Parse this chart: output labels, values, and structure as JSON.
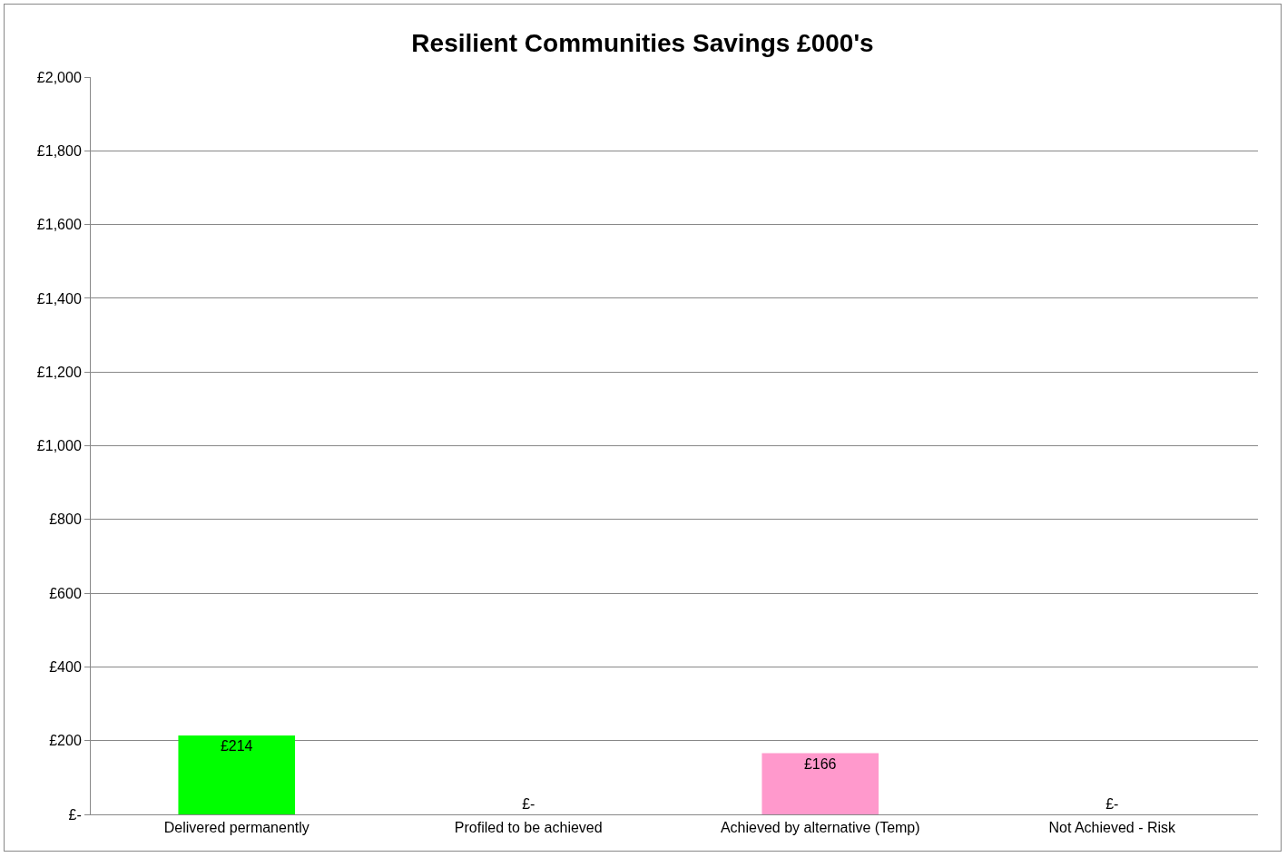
{
  "chart_data": {
    "type": "bar",
    "title": "Resilient Communities Savings £000's",
    "categories": [
      "Delivered permanently",
      "Profiled to be achieved",
      "Achieved by alternative (Temp)",
      "Not Achieved - Risk"
    ],
    "values": [
      214,
      0,
      166,
      0
    ],
    "value_labels": [
      "£214",
      "£-",
      "£166",
      "£-"
    ],
    "colors": [
      "#00ff00",
      "#ffff00",
      "#ff99cc",
      "#ff0000"
    ],
    "ylim": [
      0,
      2000
    ],
    "yticks": [
      {
        "value": 0,
        "label": "£-"
      },
      {
        "value": 200,
        "label": "£200"
      },
      {
        "value": 400,
        "label": "£400"
      },
      {
        "value": 600,
        "label": "£600"
      },
      {
        "value": 800,
        "label": "£800"
      },
      {
        "value": 1000,
        "label": "£1,000"
      },
      {
        "value": 1200,
        "label": "£1,200"
      },
      {
        "value": 1400,
        "label": "£1,400"
      },
      {
        "value": 1600,
        "label": "£1,600"
      },
      {
        "value": 1800,
        "label": "£1,800"
      },
      {
        "value": 2000,
        "label": "£2,000"
      }
    ],
    "grid": "y"
  }
}
